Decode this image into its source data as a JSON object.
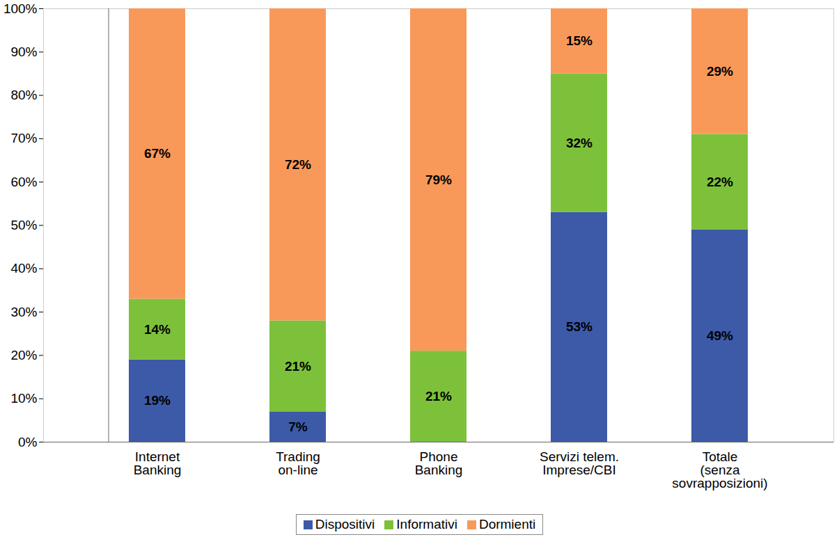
{
  "chart_data": {
    "type": "bar",
    "stacked": true,
    "data_labels": true,
    "grid": false,
    "legend": "bottom",
    "categories": [
      "Internet\nBanking",
      "Trading\non-line",
      "Phone\nBanking",
      "Servizi telem.\nImprese/CBI",
      "Totale\n(senza\nsovrapposizioni)"
    ],
    "ylim": [
      0,
      100
    ],
    "yticks": [
      {
        "value": 0,
        "label": "0%"
      },
      {
        "value": 10,
        "label": "10%"
      },
      {
        "value": 20,
        "label": "20%"
      },
      {
        "value": 30,
        "label": "30%"
      },
      {
        "value": 40,
        "label": "40%"
      },
      {
        "value": 50,
        "label": "50%"
      },
      {
        "value": 60,
        "label": "60%"
      },
      {
        "value": 70,
        "label": "70%"
      },
      {
        "value": 80,
        "label": "80%"
      },
      {
        "value": 90,
        "label": "90%"
      },
      {
        "value": 100,
        "label": "100%"
      }
    ],
    "series": [
      {
        "name": "Dispositivi",
        "color": "#3c5aa8",
        "values": [
          19,
          7,
          null,
          53,
          49
        ],
        "value_labels": [
          "19%",
          "7%",
          null,
          "53%",
          "49%"
        ]
      },
      {
        "name": "Informativi",
        "color": "#7dc13b",
        "values": [
          14,
          21,
          21,
          32,
          22
        ],
        "value_labels": [
          "14%",
          "21%",
          "21%",
          "32%",
          "22%"
        ]
      },
      {
        "name": "Dormienti",
        "color": "#f8995a",
        "values": [
          67,
          72,
          79,
          15,
          29
        ],
        "value_labels": [
          "67%",
          "72%",
          "79%",
          "15%",
          "29%"
        ]
      }
    ]
  }
}
